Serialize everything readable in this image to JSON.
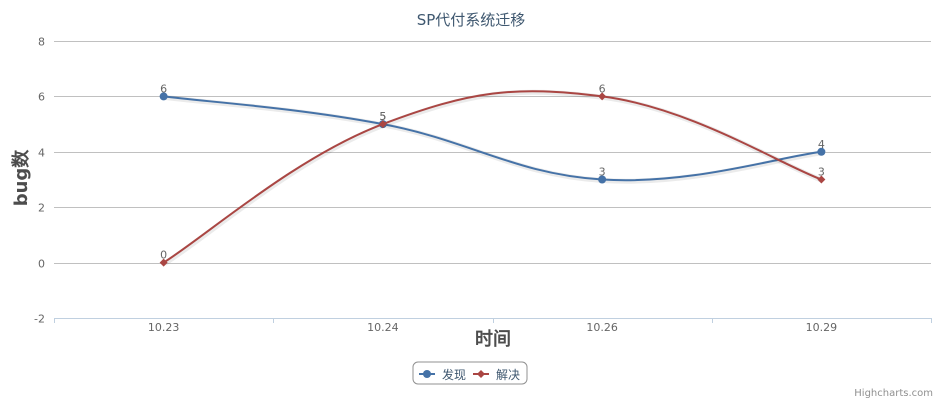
{
  "chart_data": {
    "type": "line",
    "title": "SP代付系统迁移",
    "xlabel": "时间",
    "ylabel": "bug数",
    "categories": [
      "10.23",
      "10.24",
      "10.26",
      "10.29"
    ],
    "ylim": [
      -2,
      8
    ],
    "yticks": [
      -2,
      0,
      2,
      4,
      6,
      8
    ],
    "grid": true,
    "smooth": true,
    "data_labels": true,
    "legend_position": "bottom-center",
    "series": [
      {
        "name": "发现",
        "values": [
          6,
          5,
          3,
          4
        ],
        "color": "#4572A7",
        "marker": "circle"
      },
      {
        "name": "解决",
        "values": [
          0,
          5,
          6,
          3
        ],
        "color": "#AA4643",
        "marker": "diamond"
      }
    ]
  },
  "credits": "Highcharts.com"
}
